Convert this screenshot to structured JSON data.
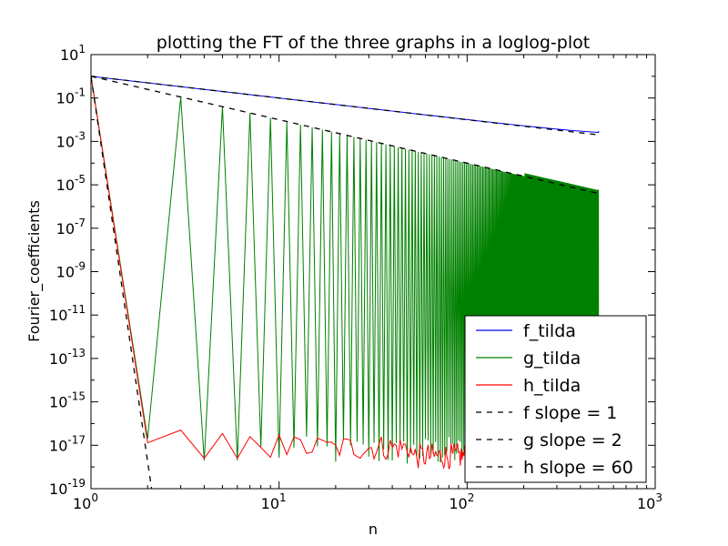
{
  "chart_data": {
    "type": "line",
    "title": "plotting the FT of the three graphs in a loglog-plot",
    "xlabel": "n",
    "ylabel": "Fourier_coefficients",
    "xscale": "log",
    "yscale": "log",
    "xlim": [
      1,
      1000
    ],
    "ylim": [
      1e-19,
      10
    ],
    "xticks": [
      {
        "value": 1,
        "base": "10",
        "exp": "0"
      },
      {
        "value": 10,
        "base": "10",
        "exp": "1"
      },
      {
        "value": 100,
        "base": "10",
        "exp": "2"
      },
      {
        "value": 1000,
        "base": "10",
        "exp": "3"
      }
    ],
    "yticks": [
      {
        "value": 10.0,
        "base": "10",
        "exp": "1"
      },
      {
        "value": 0.1,
        "base": "10",
        "exp": "-1"
      },
      {
        "value": 0.001,
        "base": "10",
        "exp": "-3"
      },
      {
        "value": 1e-05,
        "base": "10",
        "exp": "-5"
      },
      {
        "value": 1e-07,
        "base": "10",
        "exp": "-7"
      },
      {
        "value": 1e-09,
        "base": "10",
        "exp": "-9"
      },
      {
        "value": 1e-11,
        "base": "10",
        "exp": "-11"
      },
      {
        "value": 1e-13,
        "base": "10",
        "exp": "-13"
      },
      {
        "value": 1e-15,
        "base": "10",
        "exp": "-15"
      },
      {
        "value": 1e-17,
        "base": "10",
        "exp": "-17"
      },
      {
        "value": 1e-19,
        "base": "10",
        "exp": "-19"
      }
    ],
    "legend": {
      "location": "lower right"
    },
    "series": [
      {
        "name": "f_tilda",
        "color": "#0000ff",
        "style": "solid",
        "x": [
          1,
          2,
          5,
          10,
          20,
          50,
          100,
          200,
          500
        ],
        "y": [
          1.0,
          0.5,
          0.2,
          0.1,
          0.05,
          0.02,
          0.01,
          0.005,
          0.003
        ]
      },
      {
        "name": "g_tilda",
        "color": "#008000",
        "style": "solid",
        "x_range": [
          1,
          500
        ],
        "peaks_y": "x^-2",
        "peaks_at": "odd n",
        "troughs_y_range": [
          1e-18,
          3e-17
        ],
        "sample_points": [
          [
            1,
            1.0
          ],
          [
            2,
            2e-17
          ],
          [
            3,
            0.11
          ],
          [
            4,
            2e-18
          ],
          [
            5,
            0.04
          ],
          [
            6,
            2e-18
          ],
          [
            7,
            0.02
          ],
          [
            9,
            0.012
          ],
          [
            11,
            0.008
          ],
          [
            15,
            0.0045
          ],
          [
            21,
            0.0023
          ],
          [
            51,
            0.0004
          ],
          [
            101,
            0.0001
          ],
          [
            201,
            2.5e-05
          ],
          [
            499,
            6e-06
          ]
        ]
      },
      {
        "name": "h_tilda",
        "color": "#ff0000",
        "style": "solid",
        "x_range": [
          1,
          500
        ],
        "noise_floor_range": [
          1e-18,
          2e-17
        ],
        "sample_points": [
          [
            1,
            1.0
          ],
          [
            2,
            1.3e-17
          ],
          [
            3,
            5e-17
          ],
          [
            4,
            2.5e-18
          ],
          [
            5,
            3.5e-17
          ],
          [
            6,
            2.5e-18
          ],
          [
            7,
            2.5e-17
          ],
          [
            8,
            8e-18
          ],
          [
            10,
            3e-17
          ],
          [
            20,
            1e-17
          ],
          [
            50,
            8e-18
          ],
          [
            100,
            5e-18
          ],
          [
            500,
            5e-18
          ]
        ]
      },
      {
        "name": "f slope = 1",
        "color": "#000000",
        "style": "dashed",
        "x": [
          1,
          500
        ],
        "y": [
          1.0,
          0.002
        ]
      },
      {
        "name": "g slope = 2",
        "color": "#000000",
        "style": "dashed",
        "x": [
          1,
          500
        ],
        "y": [
          1.0,
          4e-06
        ]
      },
      {
        "name": "h slope = 60",
        "color": "#000000",
        "style": "dashed",
        "x": [
          1,
          2.1
        ],
        "y": [
          1.0,
          1e-19
        ]
      }
    ]
  }
}
